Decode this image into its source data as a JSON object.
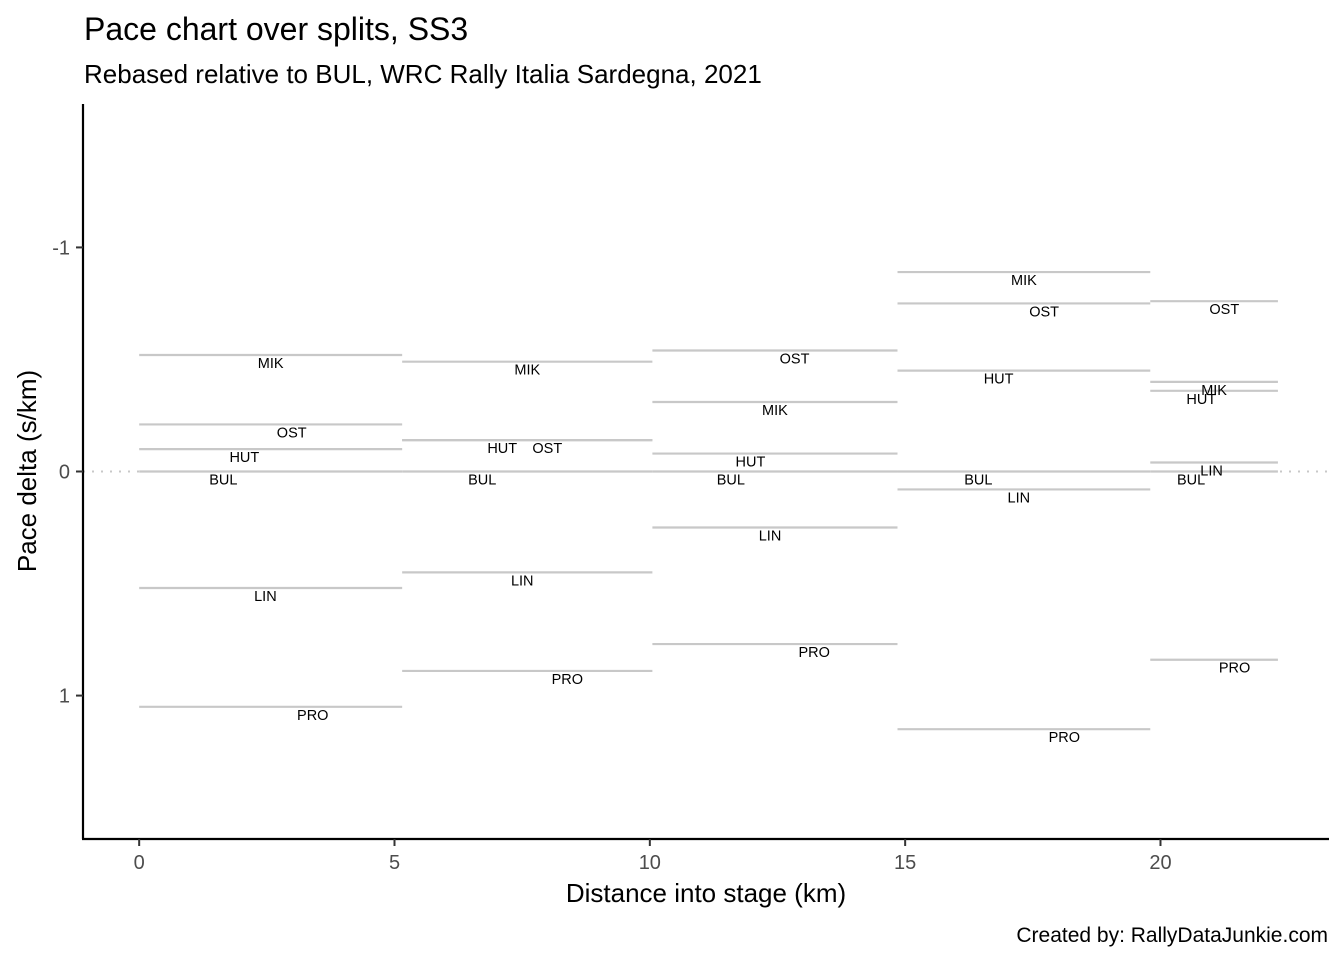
{
  "chart_data": {
    "type": "line",
    "title": "Pace chart over splits, SS3",
    "subtitle": "Rebased relative to BUL, WRC Rally Italia Sardegna, 2021",
    "xlabel": "Distance into stage (km)",
    "ylabel": "Pace delta (s/km)",
    "caption": "Created by: RallyDataJunkie.com",
    "xlim": [
      -1.1,
      23.3
    ],
    "ylim": [
      1.64,
      -1.64
    ],
    "y_reversed": true,
    "x_ticks": [
      0,
      5,
      10,
      15,
      20
    ],
    "x_tick_labels": [
      "0",
      "5",
      "10",
      "15",
      "20"
    ],
    "y_ticks": [
      -1,
      0,
      1
    ],
    "y_tick_labels": [
      "-1",
      "0",
      "1"
    ],
    "reference_line": {
      "y": 0,
      "style": "dotted"
    },
    "grid": false,
    "segment_color": "#c8c8c8",
    "splits": [
      {
        "start": 0.0,
        "end": 5.15
      },
      {
        "start": 5.15,
        "end": 10.05
      },
      {
        "start": 10.05,
        "end": 14.85
      },
      {
        "start": 14.85,
        "end": 19.8
      },
      {
        "start": 19.8,
        "end": 22.3
      }
    ],
    "series": [
      {
        "name": "BUL",
        "values": [
          0.0,
          0.0,
          0.0,
          0.0,
          0.0
        ]
      },
      {
        "name": "MIK",
        "values": [
          -0.52,
          -0.49,
          -0.31,
          -0.89,
          -0.4
        ]
      },
      {
        "name": "OST",
        "values": [
          -0.21,
          -0.14,
          -0.54,
          -0.75,
          -0.76
        ]
      },
      {
        "name": "HUT",
        "values": [
          -0.1,
          -0.14,
          -0.08,
          -0.45,
          -0.36
        ]
      },
      {
        "name": "LIN",
        "values": [
          0.52,
          0.45,
          0.25,
          0.08,
          -0.04
        ]
      },
      {
        "name": "PRO",
        "values": [
          1.05,
          0.89,
          0.77,
          1.15,
          0.84
        ]
      }
    ]
  }
}
